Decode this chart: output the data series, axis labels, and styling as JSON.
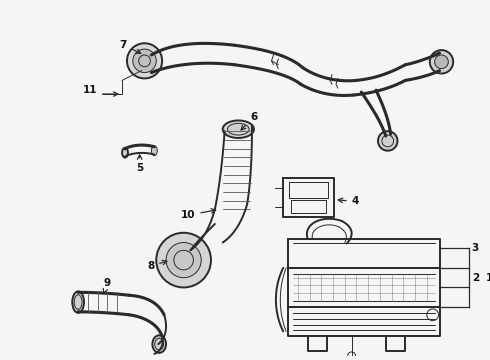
{
  "bg_color": "#f0f0f0",
  "line_color": "#2a2a2a",
  "text_color": "#111111",
  "fig_width": 4.9,
  "fig_height": 3.6,
  "dpi": 100,
  "label_fs": 7.5,
  "lw_main": 1.4,
  "lw_thin": 0.7,
  "lw_thick": 2.2
}
